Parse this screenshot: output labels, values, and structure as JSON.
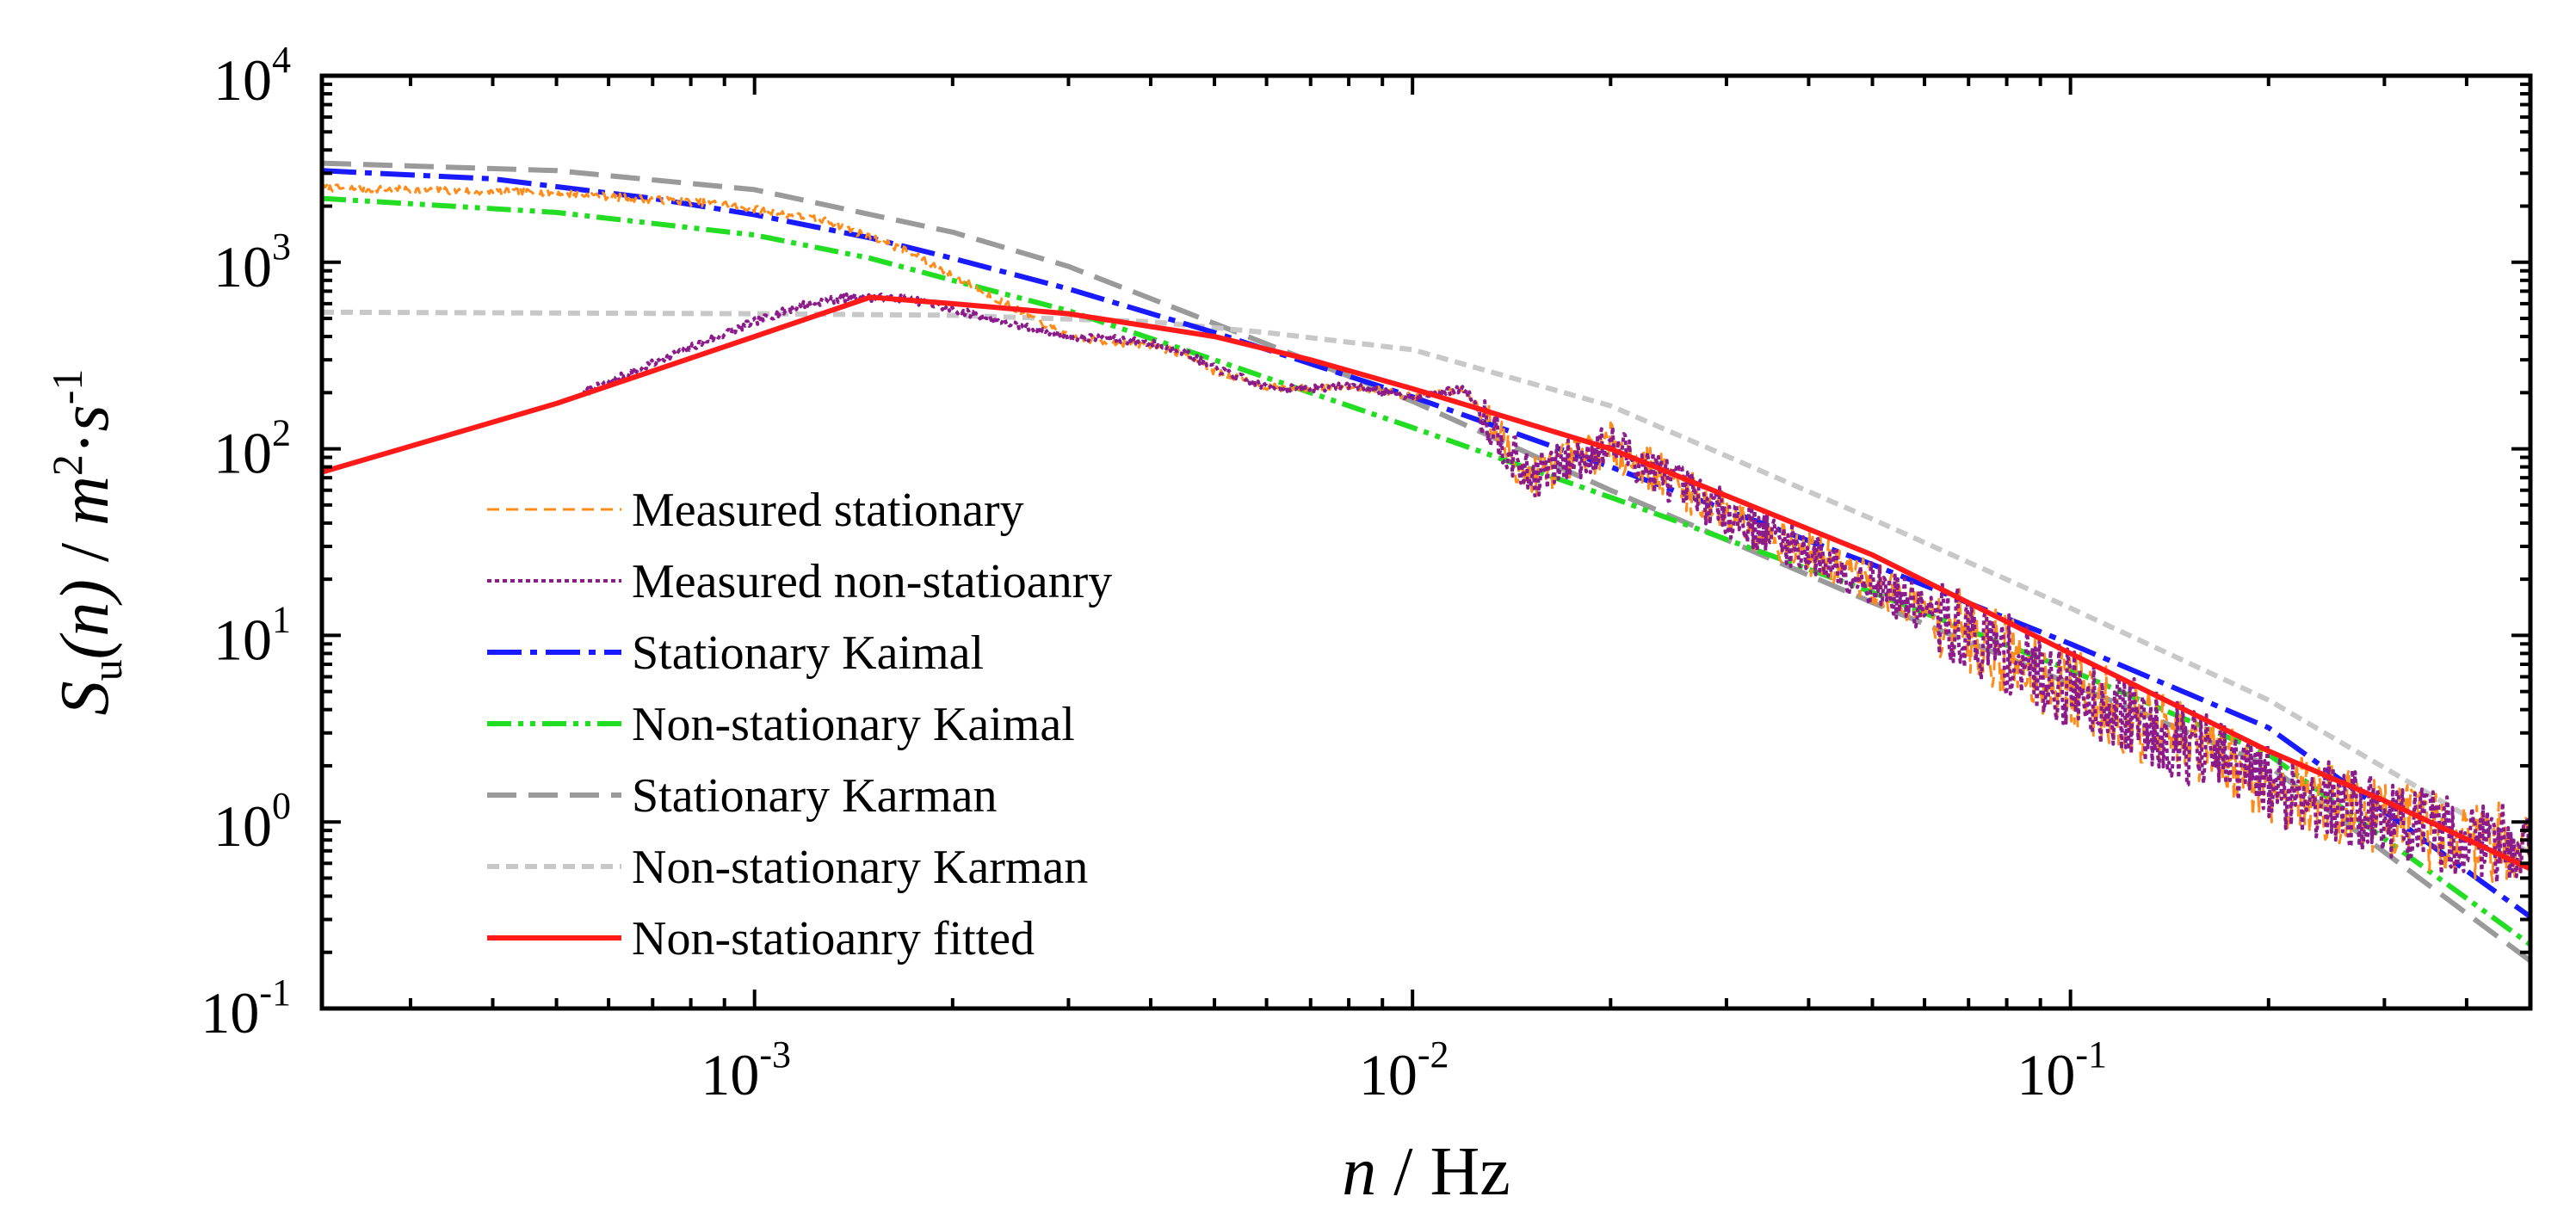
{
  "chart_data": {
    "type": "line",
    "title": "",
    "x_scale": "log",
    "y_scale": "log",
    "xlim": [
      0.00022,
      0.5
    ],
    "ylim": [
      0.1,
      10000
    ],
    "xlabel": {
      "var": "n",
      "unit": " / Hz"
    },
    "ylabel": {
      "var": "S",
      "sub": "u",
      "arg": "(n)",
      "sep": " / ",
      "unit1": "m",
      "exp1": "2",
      "dot": "·",
      "unit2": "s",
      "exp2": "-1"
    },
    "x_ticks": [
      {
        "value": 0.001,
        "base": "10",
        "exp": "-3"
      },
      {
        "value": 0.01,
        "base": "10",
        "exp": "-2"
      },
      {
        "value": 0.1,
        "base": "10",
        "exp": "-1"
      }
    ],
    "y_ticks": [
      {
        "value": 0.1,
        "base": "10",
        "exp": "-1"
      },
      {
        "value": 1,
        "base": "10",
        "exp": "0"
      },
      {
        "value": 10,
        "base": "10",
        "exp": "1"
      },
      {
        "value": 100,
        "base": "10",
        "exp": "2"
      },
      {
        "value": 1000,
        "base": "10",
        "exp": "3"
      },
      {
        "value": 10000,
        "base": "10",
        "exp": "4"
      }
    ],
    "legend_position": "lower-left",
    "series": [
      {
        "name": "Measured stationary",
        "color": "#ff8c1a",
        "dash": "14,8",
        "width": 3,
        "noisy": true,
        "noise_seed": 7,
        "points": [
          [
            0.00022,
            2500
          ],
          [
            0.0005,
            2350
          ],
          [
            0.0009,
            2050
          ],
          [
            0.0013,
            1650
          ],
          [
            0.0017,
            1150
          ],
          [
            0.002,
            850
          ],
          [
            0.0025,
            560
          ],
          [
            0.003,
            400
          ],
          [
            0.0035,
            370
          ],
          [
            0.004,
            360
          ],
          [
            0.0045,
            320
          ],
          [
            0.005,
            260
          ],
          [
            0.006,
            215
          ],
          [
            0.007,
            210
          ],
          [
            0.008,
            220
          ],
          [
            0.01,
            190
          ],
          [
            0.012,
            210
          ],
          [
            0.015,
            70
          ],
          [
            0.02,
            105
          ],
          [
            0.03,
            45
          ],
          [
            0.05,
            19
          ],
          [
            0.1,
            5.2
          ],
          [
            0.2,
            1.6
          ],
          [
            0.3,
            1.05
          ],
          [
            0.4,
            0.8
          ],
          [
            0.5,
            0.78
          ]
        ]
      },
      {
        "name": "Measured non-statioanry",
        "color": "#8b1a8b",
        "dash": "5,4",
        "width": 4,
        "noisy": true,
        "noise_seed": 7,
        "points": [
          [
            0.00055,
            200
          ],
          [
            0.0008,
            350
          ],
          [
            0.001,
            480
          ],
          [
            0.0012,
            600
          ],
          [
            0.0014,
            650
          ],
          [
            0.0017,
            640
          ],
          [
            0.002,
            560
          ],
          [
            0.0025,
            460
          ],
          [
            0.003,
            400
          ],
          [
            0.0035,
            390
          ],
          [
            0.004,
            370
          ],
          [
            0.0045,
            330
          ],
          [
            0.005,
            270
          ],
          [
            0.006,
            215
          ],
          [
            0.007,
            210
          ],
          [
            0.008,
            220
          ],
          [
            0.01,
            190
          ],
          [
            0.012,
            210
          ],
          [
            0.015,
            70
          ],
          [
            0.02,
            105
          ],
          [
            0.03,
            45
          ],
          [
            0.05,
            19
          ],
          [
            0.1,
            5.2
          ],
          [
            0.2,
            1.6
          ],
          [
            0.3,
            1.05
          ],
          [
            0.4,
            0.8
          ],
          [
            0.5,
            0.78
          ]
        ]
      },
      {
        "name": "Stationary Kaimal",
        "color": "#1a1aff",
        "dash": "40,10,8,10",
        "width": 6,
        "noisy": false,
        "points": [
          [
            0.00022,
            3100
          ],
          [
            0.0004,
            2800
          ],
          [
            0.0007,
            2200
          ],
          [
            0.001,
            1800
          ],
          [
            0.0015,
            1350
          ],
          [
            0.002,
            1050
          ],
          [
            0.003,
            720
          ],
          [
            0.005,
            420
          ],
          [
            0.01,
            190
          ],
          [
            0.02,
            80
          ],
          [
            0.05,
            24
          ],
          [
            0.1,
            9
          ],
          [
            0.2,
            3.2
          ],
          [
            0.5,
            0.31
          ]
        ]
      },
      {
        "name": "Non-stationary Kaimal",
        "color": "#22dd22",
        "dash": "28,8,6,8,6,8",
        "width": 6,
        "noisy": false,
        "points": [
          [
            0.00022,
            2200
          ],
          [
            0.0005,
            1850
          ],
          [
            0.001,
            1400
          ],
          [
            0.0015,
            1050
          ],
          [
            0.002,
            800
          ],
          [
            0.003,
            550
          ],
          [
            0.005,
            300
          ],
          [
            0.01,
            130
          ],
          [
            0.02,
            55
          ],
          [
            0.05,
            17
          ],
          [
            0.1,
            6.5
          ],
          [
            0.2,
            2.3
          ],
          [
            0.5,
            0.22
          ]
        ]
      },
      {
        "name": "Stationary Karman",
        "color": "#9a9a9a",
        "dash": "34,14",
        "width": 6,
        "noisy": false,
        "points": [
          [
            0.00022,
            3400
          ],
          [
            0.0005,
            3100
          ],
          [
            0.001,
            2450
          ],
          [
            0.002,
            1450
          ],
          [
            0.003,
            950
          ],
          [
            0.005,
            470
          ],
          [
            0.01,
            180
          ],
          [
            0.02,
            60
          ],
          [
            0.05,
            15
          ],
          [
            0.1,
            5.5
          ],
          [
            0.2,
            2
          ],
          [
            0.5,
            0.18
          ]
        ]
      },
      {
        "name": "Non-stationary Karman",
        "color": "#c8c8c8",
        "dash": "14,8",
        "width": 6,
        "noisy": false,
        "points": [
          [
            0.00022,
            540
          ],
          [
            0.001,
            530
          ],
          [
            0.002,
            520
          ],
          [
            0.004,
            480
          ],
          [
            0.006,
            420
          ],
          [
            0.01,
            340
          ],
          [
            0.02,
            170
          ],
          [
            0.05,
            42
          ],
          [
            0.1,
            14
          ],
          [
            0.2,
            4.5
          ],
          [
            0.5,
            0.68
          ]
        ]
      },
      {
        "name": "Non-statioanry fitted",
        "color": "#ff1a1a",
        "dash": "",
        "width": 6,
        "noisy": false,
        "points": [
          [
            0.00022,
            75
          ],
          [
            0.0005,
            175
          ],
          [
            0.001,
            400
          ],
          [
            0.0015,
            650
          ],
          [
            0.002,
            600
          ],
          [
            0.003,
            530
          ],
          [
            0.005,
            400
          ],
          [
            0.007,
            300
          ],
          [
            0.01,
            210
          ],
          [
            0.02,
            100
          ],
          [
            0.05,
            27
          ],
          [
            0.1,
            8
          ],
          [
            0.2,
            2.4
          ],
          [
            0.3,
            1.3
          ],
          [
            0.5,
            0.56
          ]
        ]
      }
    ]
  }
}
